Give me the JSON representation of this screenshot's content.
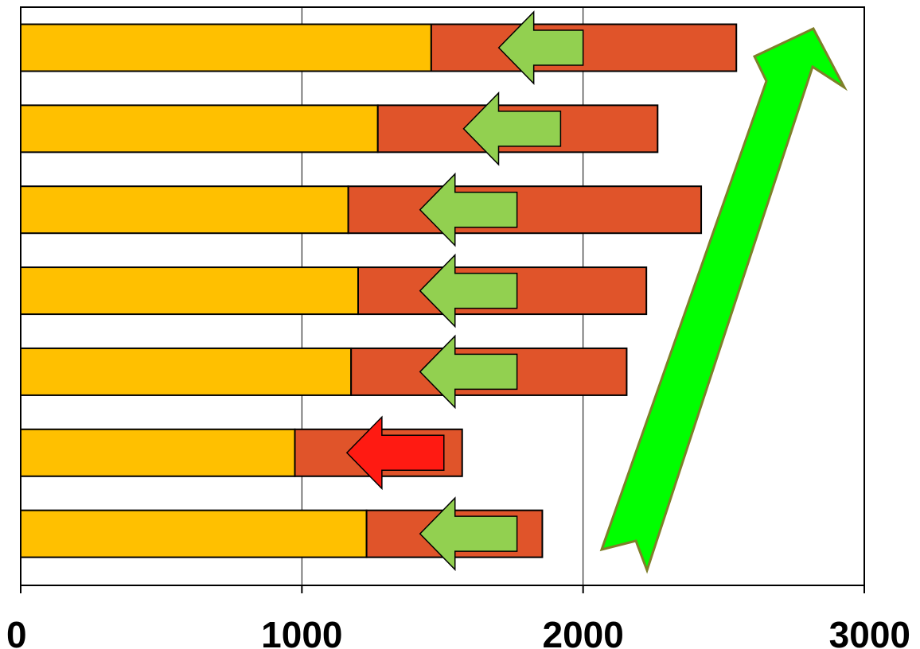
{
  "chart_data": {
    "type": "bar",
    "orientation": "horizontal",
    "stacked": true,
    "xlim": [
      0,
      3000
    ],
    "xticks": [
      "0",
      "1000",
      "2000",
      "3000"
    ],
    "grid": "vertical",
    "legend": "none",
    "title": "",
    "xlabel": "",
    "ylabel": "",
    "colors": {
      "segment_1": "#FFC000",
      "segment_2": "#E0542A",
      "arrow_green": "#92D050",
      "arrow_red": "#FF1A12",
      "big_arrow": "#00FF00",
      "big_arrow_outline": "#7F7F2A"
    },
    "bars": [
      {
        "base": 1460,
        "total": 2545,
        "arrow": {
          "from": 2000,
          "to": 1700,
          "color": "green"
        }
      },
      {
        "base": 1270,
        "total": 2265,
        "arrow": {
          "from": 1920,
          "to": 1575,
          "color": "green"
        }
      },
      {
        "base": 1165,
        "total": 2420,
        "arrow": {
          "from": 1765,
          "to": 1420,
          "color": "green"
        }
      },
      {
        "base": 1200,
        "total": 2225,
        "arrow": {
          "from": 1765,
          "to": 1420,
          "color": "green"
        }
      },
      {
        "base": 1175,
        "total": 2155,
        "arrow": {
          "from": 1765,
          "to": 1420,
          "color": "green"
        }
      },
      {
        "base": 975,
        "total": 1570,
        "arrow": {
          "from": 1505,
          "to": 1160,
          "color": "red"
        }
      },
      {
        "base": 1230,
        "total": 1855,
        "arrow": {
          "from": 1765,
          "to": 1420,
          "color": "green"
        }
      }
    ],
    "trend_arrow": {
      "direction": "up",
      "color": "green"
    }
  }
}
